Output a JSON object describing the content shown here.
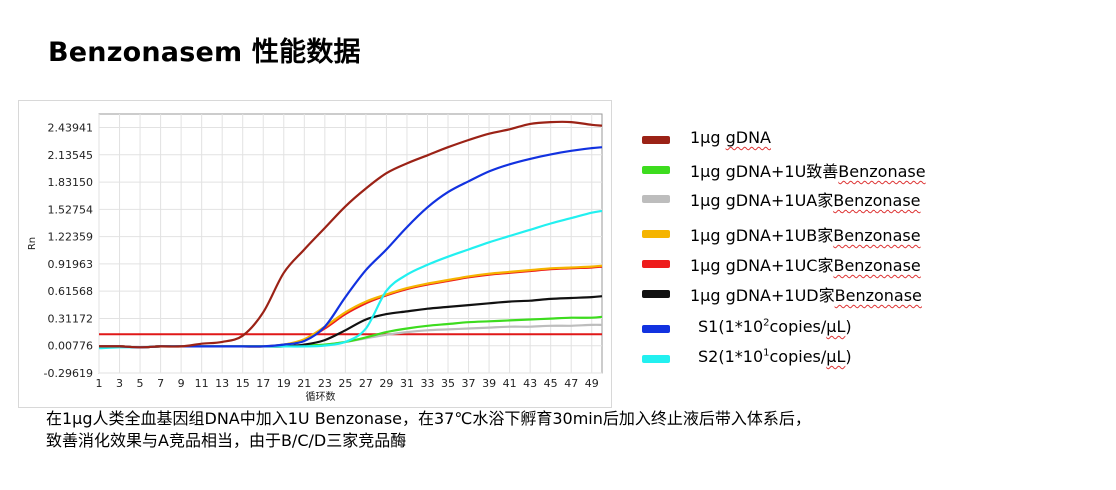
{
  "title": "Benzonasem 性能数据",
  "chart_data": {
    "type": "line",
    "ylabel": "Rn",
    "xlabel": "循环数",
    "x_ticks": [
      1,
      3,
      5,
      7,
      9,
      11,
      13,
      15,
      17,
      19,
      21,
      23,
      25,
      27,
      29,
      31,
      33,
      35,
      37,
      39,
      41,
      43,
      45,
      47,
      49
    ],
    "y_ticks": [
      "2.43941",
      "2.13545",
      "1.83150",
      "1.52754",
      "1.22359",
      "0.91963",
      "0.61568",
      "0.31172",
      "0.00776",
      "-0.29619"
    ],
    "xlim": [
      1,
      50
    ],
    "ylim": [
      -0.29619,
      2.59
    ],
    "grid": true,
    "threshold": 0.135,
    "x": [
      1,
      3,
      5,
      7,
      9,
      11,
      13,
      15,
      17,
      19,
      21,
      23,
      25,
      27,
      29,
      31,
      33,
      35,
      37,
      39,
      41,
      43,
      45,
      47,
      49,
      50
    ],
    "series": [
      {
        "name": "1μg gDNA",
        "color": "#9b2216",
        "values": [
          0.0,
          0.0,
          -0.01,
          0.0,
          0.0,
          0.03,
          0.05,
          0.12,
          0.38,
          0.82,
          1.08,
          1.32,
          1.56,
          1.76,
          1.93,
          2.04,
          2.13,
          2.22,
          2.3,
          2.37,
          2.42,
          2.48,
          2.5,
          2.5,
          2.47,
          2.46
        ]
      },
      {
        "name": "1μg gDNA+1U致善Benzonase",
        "color": "#3ddc1e",
        "values": [
          0.0,
          0.0,
          -0.01,
          0.0,
          0.0,
          0.0,
          0.0,
          0.0,
          0.0,
          0.0,
          0.01,
          0.02,
          0.05,
          0.1,
          0.16,
          0.2,
          0.23,
          0.25,
          0.27,
          0.28,
          0.29,
          0.3,
          0.31,
          0.32,
          0.32,
          0.33
        ]
      },
      {
        "name": "1μg gDNA+1UA家Benzonase",
        "color": "#bdbdbd",
        "values": [
          0.0,
          0.0,
          -0.01,
          0.0,
          0.0,
          0.0,
          0.0,
          0.0,
          0.0,
          0.0,
          0.01,
          0.02,
          0.05,
          0.09,
          0.13,
          0.16,
          0.18,
          0.19,
          0.2,
          0.21,
          0.22,
          0.22,
          0.23,
          0.23,
          0.24,
          0.24
        ]
      },
      {
        "name": "1μg gDNA+1UB家Benzonase",
        "color": "#f5b400",
        "values": [
          0.0,
          0.0,
          -0.01,
          0.0,
          0.0,
          0.0,
          0.0,
          0.0,
          0.0,
          0.02,
          0.08,
          0.22,
          0.38,
          0.5,
          0.58,
          0.65,
          0.7,
          0.74,
          0.78,
          0.81,
          0.83,
          0.85,
          0.87,
          0.88,
          0.89,
          0.9
        ]
      },
      {
        "name": "1μg gDNA+1UC家Benzonase",
        "color": "#ee1c1c",
        "values": [
          0.0,
          0.0,
          -0.01,
          0.0,
          0.0,
          0.0,
          0.0,
          0.0,
          0.0,
          0.02,
          0.07,
          0.2,
          0.36,
          0.48,
          0.57,
          0.64,
          0.69,
          0.73,
          0.77,
          0.8,
          0.82,
          0.84,
          0.86,
          0.87,
          0.88,
          0.89
        ]
      },
      {
        "name": "1μg gDNA+1UD家Benzonase",
        "color": "#111111",
        "values": [
          0.0,
          0.0,
          -0.01,
          0.0,
          0.0,
          0.0,
          0.0,
          0.0,
          0.0,
          0.0,
          0.02,
          0.07,
          0.18,
          0.3,
          0.36,
          0.39,
          0.42,
          0.44,
          0.46,
          0.48,
          0.5,
          0.51,
          0.53,
          0.54,
          0.55,
          0.56
        ]
      },
      {
        "name": "S1(1*10²copies/μL)",
        "color": "#1232e0",
        "values": [
          0.0,
          0.0,
          -0.01,
          0.0,
          0.0,
          0.0,
          0.0,
          0.0,
          0.0,
          0.02,
          0.06,
          0.22,
          0.55,
          0.85,
          1.08,
          1.33,
          1.55,
          1.72,
          1.84,
          1.95,
          2.03,
          2.09,
          2.14,
          2.18,
          2.21,
          2.22
        ]
      },
      {
        "name": "S2(1*10¹copies/μL)",
        "color": "#22f0f0",
        "values": [
          -0.02,
          -0.01,
          -0.01,
          0.0,
          0.0,
          0.0,
          0.0,
          0.0,
          0.0,
          0.0,
          0.0,
          0.01,
          0.05,
          0.2,
          0.62,
          0.8,
          0.91,
          1.0,
          1.08,
          1.16,
          1.23,
          1.3,
          1.37,
          1.43,
          1.49,
          1.51
        ]
      }
    ]
  },
  "legend": {
    "items": [
      {
        "prefix": "1μg ",
        "squig": "gDNA",
        "suffix": "",
        "color": "#9b2216"
      },
      {
        "prefix": "1μg gDNA+1U致善",
        "squig": "Benzonase",
        "suffix": "",
        "color": "#3ddc1e"
      },
      {
        "prefix": "1μg gDNA+1UA家",
        "squig": "Benzonase",
        "suffix": "",
        "color": "#bdbdbd"
      },
      {
        "prefix": "1μg gDNA+1UB家",
        "squig": "Benzonase",
        "suffix": "",
        "color": "#f5b400"
      },
      {
        "prefix": "1μg gDNA+1UC家",
        "squig": "Benzonase",
        "suffix": "",
        "color": "#ee1c1c"
      },
      {
        "prefix": "1μg gDNA+1UD家",
        "squig": "Benzonase",
        "suffix": "",
        "color": "#111111"
      }
    ],
    "s1": {
      "a": "S1(1*10",
      "sup": "2",
      "b": "copies/",
      "squig": "μL",
      "c": ")",
      "color": "#1232e0"
    },
    "s2": {
      "a": "S2(1*10",
      "sup": "1",
      "b": "copies/",
      "squig": "μL",
      "c": ")",
      "color": "#22f0f0"
    }
  },
  "caption": {
    "line1": "在1μg人类全血基因组DNA中加入1U Benzonase，在37℃水浴下孵育30min后加入终止液后带入体系后，",
    "line2": "致善消化效果与A竞品相当，由于B/C/D三家竞品酶"
  }
}
